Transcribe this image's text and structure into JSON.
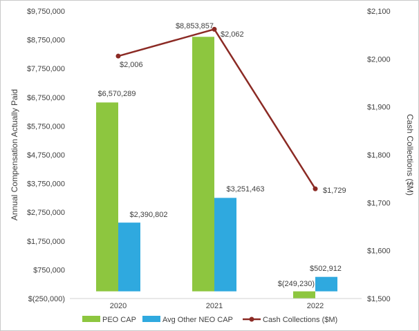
{
  "chart_data": {
    "type": "bar",
    "categories": [
      "2020",
      "2021",
      "2022"
    ],
    "series": [
      {
        "name": "PEO CAP",
        "type": "bar",
        "axis": "left",
        "values": [
          6570289,
          8853857,
          -249230
        ],
        "labels": [
          "$6,570,289",
          "$8,853,857",
          "$(249,230)"
        ],
        "color": "#8dc63f"
      },
      {
        "name": "Avg Other NEO CAP",
        "type": "bar",
        "axis": "left",
        "values": [
          2390802,
          3251463,
          502912
        ],
        "labels": [
          "$2,390,802",
          "$3,251,463",
          "$502,912"
        ],
        "color": "#2fa9df"
      },
      {
        "name": "Cash Collections ($M)",
        "type": "line",
        "axis": "right",
        "values": [
          2006,
          2062,
          1729
        ],
        "labels": [
          "$2,006",
          "$2,062",
          "$1,729"
        ],
        "color": "#8b2a24"
      }
    ],
    "ylabel": "Annual Compensation Actually Paid",
    "y2label": "Cash Collections ($M)",
    "ylim": [
      -250000,
      9750000
    ],
    "y2lim": [
      1500,
      2100
    ],
    "yticks": [
      -250000,
      750000,
      1750000,
      2750000,
      3750000,
      4750000,
      5750000,
      6750000,
      7750000,
      8750000,
      9750000
    ],
    "ytick_labels": [
      "$(250,000)",
      "$750,000",
      "$1,750,000",
      "$2,750,000",
      "$3,750,000",
      "$4,750,000",
      "$5,750,000",
      "$6,750,000",
      "$7,750,000",
      "$8,750,000",
      "$9,750,000"
    ],
    "y2ticks": [
      1500,
      1600,
      1700,
      1800,
      1900,
      2000,
      2100
    ],
    "y2tick_labels": [
      "$1,500",
      "$1,600",
      "$1,700",
      "$1,800",
      "$1,900",
      "$2,000",
      "$2,100"
    ],
    "legend": [
      "PEO CAP",
      "Avg Other NEO CAP",
      "Cash Collections ($M)"
    ],
    "legend_position": "bottom",
    "grid": false
  }
}
